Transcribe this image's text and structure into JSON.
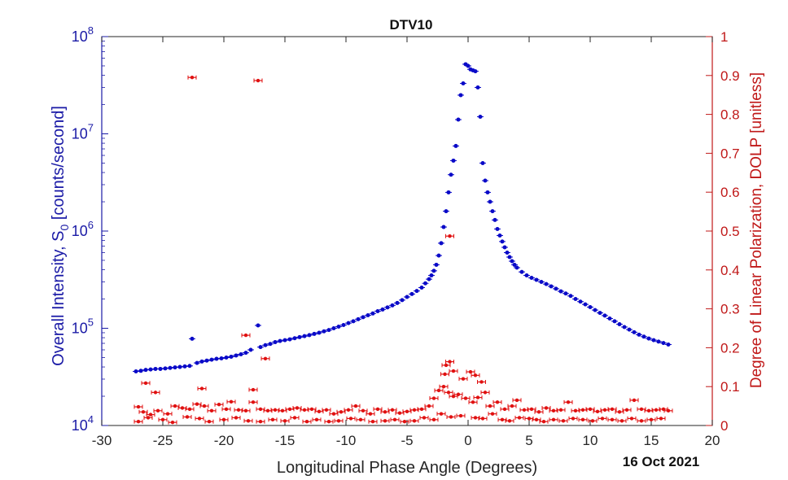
{
  "chart_data": {
    "type": "scatter",
    "title": "DTV10",
    "date_label": "16 Oct 2021",
    "xlabel": "Longitudinal Phase Angle (Degrees)",
    "ylabel_left": "Overall Intensity, S",
    "ylabel_left_sub": "0",
    "ylabel_left_unit": " [counts/second]",
    "ylabel_right": "Degree of Linear Polarization, DOLP [unitless]",
    "xlim": [
      -30,
      20
    ],
    "x_ticks": [
      -30,
      -25,
      -20,
      -15,
      -10,
      -5,
      0,
      5,
      10,
      15,
      20
    ],
    "y_left_scale": "log",
    "y_left_lim": [
      10000,
      100000000
    ],
    "y_left_ticks": [
      {
        "value": 10000,
        "base": "10",
        "exp": "4"
      },
      {
        "value": 100000,
        "base": "10",
        "exp": "5"
      },
      {
        "value": 1000000,
        "base": "10",
        "exp": "6"
      },
      {
        "value": 10000000,
        "base": "10",
        "exp": "7"
      },
      {
        "value": 100000000,
        "base": "10",
        "exp": "8"
      }
    ],
    "y_right_lim": [
      0,
      1
    ],
    "y_right_ticks": [
      0,
      0.1,
      0.2,
      0.3,
      0.4,
      0.5,
      0.6,
      0.7,
      0.8,
      0.9,
      1
    ],
    "colors": {
      "intensity": "#0a0ac8",
      "dolp": "#e01010",
      "left_axis": "#1a1aa6",
      "right_axis": "#c01818"
    },
    "series": [
      {
        "axis": "left",
        "points": [
          [
            -27.2,
            36000
          ],
          [
            -26.8,
            36500
          ],
          [
            -26.4,
            37300
          ],
          [
            -26.0,
            37700
          ],
          [
            -25.6,
            38200
          ],
          [
            -25.2,
            38200
          ],
          [
            -24.8,
            38600
          ],
          [
            -24.4,
            39100
          ],
          [
            -24.0,
            39600
          ],
          [
            -23.6,
            40000
          ],
          [
            -23.2,
            40500
          ],
          [
            -22.8,
            41000
          ],
          [
            -22.6,
            78000
          ],
          [
            -22.2,
            44000
          ],
          [
            -21.8,
            45500
          ],
          [
            -21.4,
            46500
          ],
          [
            -21.0,
            47500
          ],
          [
            -20.6,
            48500
          ],
          [
            -20.2,
            49000
          ],
          [
            -19.8,
            50000
          ],
          [
            -19.4,
            51000
          ],
          [
            -19.0,
            52500
          ],
          [
            -18.6,
            54000
          ],
          [
            -18.2,
            56000
          ],
          [
            -17.8,
            60000
          ],
          [
            -17.2,
            107000
          ],
          [
            -17.0,
            64000
          ],
          [
            -16.6,
            67000
          ],
          [
            -16.2,
            69000
          ],
          [
            -15.8,
            72000
          ],
          [
            -15.4,
            74000
          ],
          [
            -15.0,
            75500
          ],
          [
            -14.6,
            77000
          ],
          [
            -14.2,
            79000
          ],
          [
            -13.8,
            81000
          ],
          [
            -13.4,
            83000
          ],
          [
            -13.0,
            85000
          ],
          [
            -12.6,
            87500
          ],
          [
            -12.2,
            90000
          ],
          [
            -11.8,
            93000
          ],
          [
            -11.4,
            96000
          ],
          [
            -11.0,
            100000
          ],
          [
            -10.6,
            104000
          ],
          [
            -10.2,
            108000
          ],
          [
            -9.8,
            113000
          ],
          [
            -9.4,
            118000
          ],
          [
            -9.0,
            124000
          ],
          [
            -8.6,
            130000
          ],
          [
            -8.2,
            136000
          ],
          [
            -7.8,
            142000
          ],
          [
            -7.4,
            150000
          ],
          [
            -7.0,
            156000
          ],
          [
            -6.6,
            164000
          ],
          [
            -6.2,
            172000
          ],
          [
            -5.8,
            182000
          ],
          [
            -5.4,
            195000
          ],
          [
            -5.0,
            210000
          ],
          [
            -4.6,
            225000
          ],
          [
            -4.2,
            242000
          ],
          [
            -3.8,
            262000
          ],
          [
            -3.5,
            290000
          ],
          [
            -3.2,
            320000
          ],
          [
            -3.0,
            350000
          ],
          [
            -2.8,
            390000
          ],
          [
            -2.6,
            450000
          ],
          [
            -2.4,
            560000
          ],
          [
            -2.2,
            750000
          ],
          [
            -2.0,
            1100000
          ],
          [
            -1.8,
            1600000
          ],
          [
            -1.6,
            2500000
          ],
          [
            -1.4,
            3800000
          ],
          [
            -1.2,
            5300000
          ],
          [
            -1.0,
            7500000
          ],
          [
            -0.8,
            14000000
          ],
          [
            -0.6,
            25000000
          ],
          [
            -0.4,
            33000000
          ],
          [
            -0.2,
            52000000
          ],
          [
            0.0,
            50000000
          ],
          [
            0.2,
            46000000
          ],
          [
            0.4,
            45000000
          ],
          [
            0.6,
            44000000
          ],
          [
            0.8,
            30000000
          ],
          [
            1.0,
            15000000
          ],
          [
            1.2,
            5000000
          ],
          [
            1.4,
            3300000
          ],
          [
            1.6,
            2500000
          ],
          [
            1.8,
            2000000
          ],
          [
            2.0,
            1600000
          ],
          [
            2.2,
            1300000
          ],
          [
            2.4,
            1050000
          ],
          [
            2.6,
            900000
          ],
          [
            2.8,
            780000
          ],
          [
            3.0,
            680000
          ],
          [
            3.2,
            600000
          ],
          [
            3.4,
            540000
          ],
          [
            3.6,
            490000
          ],
          [
            3.8,
            450000
          ],
          [
            4.0,
            420000
          ],
          [
            4.4,
            380000
          ],
          [
            4.8,
            350000
          ],
          [
            5.2,
            330000
          ],
          [
            5.6,
            315000
          ],
          [
            6.0,
            300000
          ],
          [
            6.4,
            285000
          ],
          [
            6.8,
            270000
          ],
          [
            7.2,
            255000
          ],
          [
            7.6,
            240000
          ],
          [
            8.0,
            228000
          ],
          [
            8.4,
            215000
          ],
          [
            8.8,
            200000
          ],
          [
            9.2,
            188000
          ],
          [
            9.6,
            176000
          ],
          [
            10.0,
            165000
          ],
          [
            10.4,
            154000
          ],
          [
            10.8,
            144000
          ],
          [
            11.2,
            135000
          ],
          [
            11.6,
            126000
          ],
          [
            12.0,
            118000
          ],
          [
            12.4,
            110000
          ],
          [
            12.8,
            103000
          ],
          [
            13.2,
            97000
          ],
          [
            13.6,
            91000
          ],
          [
            14.0,
            86000
          ],
          [
            14.4,
            82000
          ],
          [
            14.8,
            78500
          ],
          [
            15.2,
            75500
          ],
          [
            15.6,
            73000
          ],
          [
            16.0,
            70500
          ],
          [
            16.4,
            68000
          ]
        ]
      },
      {
        "axis": "right",
        "points": [
          [
            -22.6,
            0.895
          ],
          [
            -17.2,
            0.887
          ],
          [
            -1.5,
            0.487
          ],
          [
            -18.2,
            0.232
          ],
          [
            -16.6,
            0.172
          ],
          [
            -26.4,
            0.109
          ],
          [
            -25.6,
            0.085
          ],
          [
            -21.8,
            0.095
          ],
          [
            -17.6,
            0.092
          ],
          [
            -1.8,
            0.155
          ],
          [
            -1.5,
            0.164
          ],
          [
            -1.9,
            0.132
          ],
          [
            -1.2,
            0.14
          ],
          [
            -0.4,
            0.12
          ],
          [
            0.2,
            0.138
          ],
          [
            0.6,
            0.129
          ],
          [
            1.1,
            0.112
          ],
          [
            -27.0,
            0.048
          ],
          [
            -26.6,
            0.035
          ],
          [
            -26.0,
            0.028
          ],
          [
            -25.4,
            0.038
          ],
          [
            -24.6,
            0.03
          ],
          [
            -24.0,
            0.05
          ],
          [
            -23.4,
            0.045
          ],
          [
            -22.8,
            0.042
          ],
          [
            -22.2,
            0.055
          ],
          [
            -21.6,
            0.05
          ],
          [
            -21.0,
            0.038
          ],
          [
            -20.4,
            0.054
          ],
          [
            -19.8,
            0.042
          ],
          [
            -19.4,
            0.061
          ],
          [
            -18.8,
            0.04
          ],
          [
            -18.2,
            0.038
          ],
          [
            -17.6,
            0.06
          ],
          [
            -17.0,
            0.042
          ],
          [
            -16.4,
            0.038
          ],
          [
            -15.8,
            0.04
          ],
          [
            -15.2,
            0.038
          ],
          [
            -14.6,
            0.042
          ],
          [
            -14.0,
            0.045
          ],
          [
            -13.4,
            0.04
          ],
          [
            -12.8,
            0.042
          ],
          [
            -12.2,
            0.036
          ],
          [
            -11.6,
            0.04
          ],
          [
            -11.0,
            0.03
          ],
          [
            -10.4,
            0.035
          ],
          [
            -9.8,
            0.04
          ],
          [
            -9.2,
            0.05
          ],
          [
            -8.6,
            0.038
          ],
          [
            -8.0,
            0.03
          ],
          [
            -7.4,
            0.042
          ],
          [
            -6.8,
            0.035
          ],
          [
            -6.2,
            0.04
          ],
          [
            -5.6,
            0.032
          ],
          [
            -5.0,
            0.036
          ],
          [
            -4.4,
            0.04
          ],
          [
            -3.8,
            0.042
          ],
          [
            -3.2,
            0.05
          ],
          [
            -2.8,
            0.07
          ],
          [
            -2.4,
            0.09
          ],
          [
            -2.0,
            0.1
          ],
          [
            -1.6,
            0.085
          ],
          [
            -1.2,
            0.075
          ],
          [
            -0.8,
            0.08
          ],
          [
            -0.2,
            0.07
          ],
          [
            0.4,
            0.06
          ],
          [
            0.8,
            0.072
          ],
          [
            1.4,
            0.085
          ],
          [
            1.8,
            0.05
          ],
          [
            2.4,
            0.06
          ],
          [
            3.0,
            0.042
          ],
          [
            3.6,
            0.05
          ],
          [
            4.0,
            0.065
          ],
          [
            4.6,
            0.04
          ],
          [
            5.2,
            0.042
          ],
          [
            5.8,
            0.035
          ],
          [
            6.4,
            0.045
          ],
          [
            7.0,
            0.038
          ],
          [
            7.6,
            0.04
          ],
          [
            8.2,
            0.06
          ],
          [
            8.8,
            0.038
          ],
          [
            9.4,
            0.04
          ],
          [
            10.0,
            0.042
          ],
          [
            10.6,
            0.036
          ],
          [
            11.2,
            0.04
          ],
          [
            11.8,
            0.042
          ],
          [
            12.4,
            0.035
          ],
          [
            13.0,
            0.04
          ],
          [
            13.6,
            0.065
          ],
          [
            14.2,
            0.042
          ],
          [
            14.8,
            0.038
          ],
          [
            15.4,
            0.04
          ],
          [
            16.0,
            0.042
          ],
          [
            16.4,
            0.038
          ],
          [
            -27.0,
            0.01
          ],
          [
            -26.2,
            0.02
          ],
          [
            -25.0,
            0.015
          ],
          [
            -24.2,
            0.008
          ],
          [
            -23.0,
            0.022
          ],
          [
            -22.0,
            0.018
          ],
          [
            -21.2,
            0.01
          ],
          [
            -20.0,
            0.015
          ],
          [
            -19.0,
            0.02
          ],
          [
            -18.0,
            0.012
          ],
          [
            -17.0,
            0.01
          ],
          [
            -16.0,
            0.015
          ],
          [
            -15.0,
            0.012
          ],
          [
            -14.2,
            0.02
          ],
          [
            -13.2,
            0.01
          ],
          [
            -12.4,
            0.015
          ],
          [
            -11.4,
            0.01
          ],
          [
            -10.6,
            0.012
          ],
          [
            -9.6,
            0.018
          ],
          [
            -8.8,
            0.015
          ],
          [
            -7.8,
            0.01
          ],
          [
            -6.8,
            0.012
          ],
          [
            -6.0,
            0.015
          ],
          [
            -5.2,
            0.01
          ],
          [
            -4.4,
            0.012
          ],
          [
            -3.6,
            0.02
          ],
          [
            -2.8,
            0.015
          ],
          [
            -2.2,
            0.03
          ],
          [
            -1.4,
            0.022
          ],
          [
            -0.6,
            0.025
          ],
          [
            0.6,
            0.02
          ],
          [
            1.2,
            0.018
          ],
          [
            2.0,
            0.03
          ],
          [
            2.8,
            0.015
          ],
          [
            3.4,
            0.012
          ],
          [
            4.2,
            0.02
          ],
          [
            5.0,
            0.018
          ],
          [
            5.6,
            0.015
          ],
          [
            6.2,
            0.01
          ],
          [
            7.0,
            0.015
          ],
          [
            7.8,
            0.012
          ],
          [
            8.6,
            0.018
          ],
          [
            9.4,
            0.015
          ],
          [
            10.2,
            0.012
          ],
          [
            11.0,
            0.018
          ],
          [
            11.8,
            0.015
          ],
          [
            12.6,
            0.012
          ],
          [
            13.4,
            0.018
          ],
          [
            14.2,
            0.012
          ],
          [
            15.0,
            0.015
          ],
          [
            15.8,
            0.018
          ]
        ]
      }
    ]
  }
}
